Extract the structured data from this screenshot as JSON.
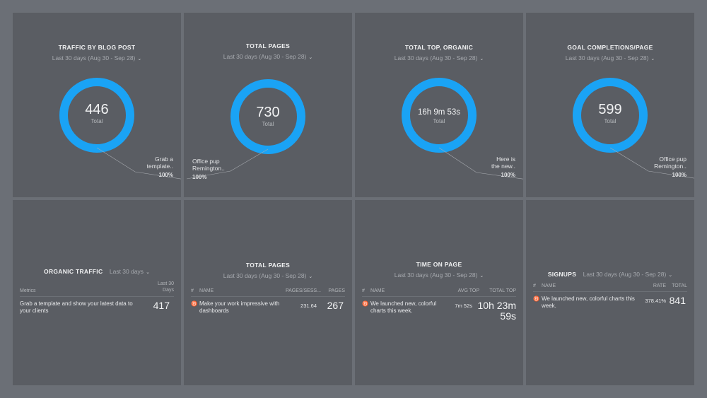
{
  "colors": {
    "accent": "#1aa3f5",
    "card": "#5a5d63",
    "background": "#6b6f76"
  },
  "icons": {
    "chevron": "chevron-down-icon",
    "row_marker": "trophy-icon"
  },
  "top_cards": [
    {
      "title": "TRAFFIC BY BLOG POST",
      "date_range": "Last 30 days (Aug 30 - Sep 28)",
      "value": "446",
      "value_label": "Total",
      "callout_line1": "Grab a",
      "callout_line2": "template..",
      "callout_pct": "100%"
    },
    {
      "title": "TOTAL PAGES",
      "date_range": "Last 30 days (Aug 30 - Sep 28)",
      "value": "730",
      "value_label": "Total",
      "callout_line1": "Office pup",
      "callout_line2": "Remington..",
      "callout_pct": "100%"
    },
    {
      "title": "TOTAL TOP, ORGANIC",
      "date_range": "Last 30 days (Aug 30 - Sep 28)",
      "value": "16h 9m 53s",
      "value_label": "Total",
      "callout_line1": "Here is",
      "callout_line2": "the new..",
      "callout_pct": "100%"
    },
    {
      "title": "GOAL COMPLETIONS/PAGE",
      "date_range": "Last 30 days (Aug 30 - Sep 28)",
      "value": "599",
      "value_label": "Total",
      "callout_line1": "Office pup",
      "callout_line2": "Remington..",
      "callout_pct": "100%"
    }
  ],
  "organic": {
    "title": "ORGANIC TRAFFIC",
    "date_range": "Last 30 days",
    "col_metrics": "Metrics",
    "col_last_line1": "Last 30",
    "col_last_line2": "Days",
    "row_label": "Grab a template and show your latest data to your clients",
    "row_value": "417"
  },
  "total_pages_table": {
    "title": "TOTAL PAGES",
    "date_range": "Last 30 days (Aug 30 - Sep 28)",
    "col_hash": "#",
    "col_name": "NAME",
    "col_a": "PAGES/SESS...",
    "col_b": "PAGES",
    "row_name": "Make your work impressive with dashboards",
    "row_a": "231.64",
    "row_b": "267"
  },
  "time_on_page": {
    "title": "TIME ON PAGE",
    "date_range": "Last 30 days (Aug 30 - Sep 28)",
    "col_hash": "#",
    "col_name": "NAME",
    "col_a": "AVG TOP",
    "col_b": "TOTAL TOP",
    "row_name": "We launched new, colorful charts this week.",
    "row_a": "7m 52s",
    "row_b_line1": "10h 23m",
    "row_b_line2": "59s"
  },
  "signups": {
    "title": "SIGNUPS",
    "date_range": "Last 30 days (Aug 30 - Sep 28)",
    "col_hash": "#",
    "col_name": "NAME",
    "col_a": "RATE",
    "col_b": "TOTAL",
    "row_name": "We launched new, colorful charts this week.",
    "row_a": "378.41%",
    "row_b": "841"
  }
}
